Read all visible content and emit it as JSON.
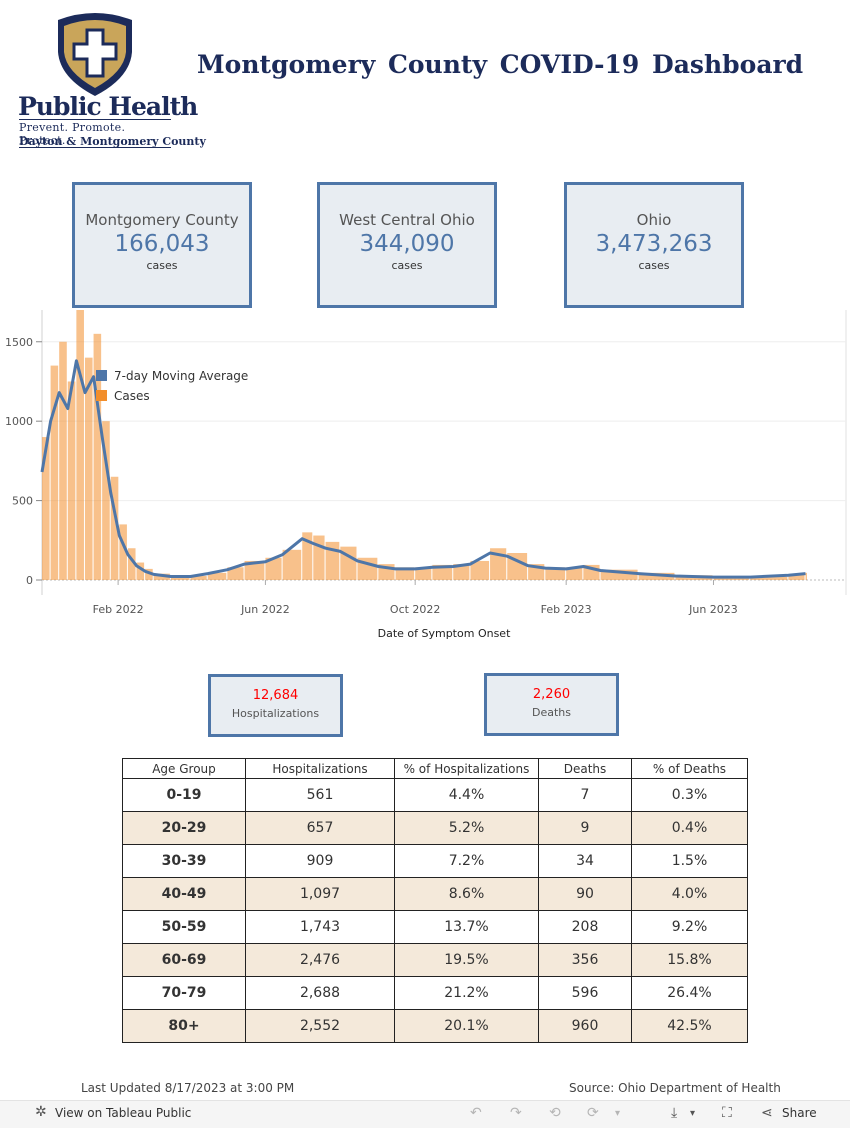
{
  "logo": {
    "name": "Public Health",
    "tagline": "Prevent. Promote. Protect.",
    "subtitle": "Dayton & Montgomery County"
  },
  "title": "Montgomery County COVID-19 Dashboard",
  "kpis": [
    {
      "region": "Montgomery County",
      "value": "166,043",
      "unit": "cases"
    },
    {
      "region": "West Central Ohio",
      "value": "344,090",
      "unit": "cases"
    },
    {
      "region": "Ohio",
      "value": "3,473,263",
      "unit": "cases"
    }
  ],
  "totals": {
    "hospitalizations": {
      "value": "12,684",
      "label": "Hospitalizations"
    },
    "deaths": {
      "value": "2,260",
      "label": "Deaths"
    }
  },
  "colors": {
    "accent": "#4e76a8",
    "cases": "#f28e2b",
    "alert": "#ff0000",
    "band": "#f4e9da"
  },
  "chart_data": {
    "type": "bar",
    "xlabel": "Date of Symptom Onset",
    "ylabel": "",
    "ylim": [
      0,
      1700
    ],
    "y_ticks": [
      0,
      500,
      1000,
      1500
    ],
    "x_range": [
      "2021-12-01",
      "2023-08-17"
    ],
    "x_ticks": [
      {
        "date": "2022-02-01",
        "label": "Feb 2022"
      },
      {
        "date": "2022-06-01",
        "label": "Jun 2022"
      },
      {
        "date": "2022-10-01",
        "label": "Oct 2022"
      },
      {
        "date": "2023-02-01",
        "label": "Feb 2023"
      },
      {
        "date": "2023-06-01",
        "label": "Jun 2023"
      }
    ],
    "legend": {
      "position": "top-left",
      "entries": [
        "7-day Moving Average",
        "Cases"
      ]
    },
    "grid": true,
    "series": [
      {
        "name": "7-day Moving Average",
        "type": "line",
        "color": "#4e76a8",
        "x": [
          "2021-12-01",
          "2021-12-08",
          "2021-12-15",
          "2021-12-22",
          "2021-12-29",
          "2022-01-05",
          "2022-01-12",
          "2022-01-19",
          "2022-01-26",
          "2022-02-02",
          "2022-02-09",
          "2022-02-16",
          "2022-02-23",
          "2022-03-02",
          "2022-03-16",
          "2022-04-01",
          "2022-04-15",
          "2022-05-01",
          "2022-05-15",
          "2022-06-01",
          "2022-06-15",
          "2022-07-01",
          "2022-07-10",
          "2022-07-20",
          "2022-08-01",
          "2022-08-15",
          "2022-09-01",
          "2022-09-15",
          "2022-10-01",
          "2022-10-15",
          "2022-11-01",
          "2022-11-15",
          "2022-12-01",
          "2022-12-15",
          "2023-01-01",
          "2023-01-15",
          "2023-02-01",
          "2023-02-15",
          "2023-03-01",
          "2023-04-01",
          "2023-05-01",
          "2023-06-01",
          "2023-07-01",
          "2023-08-01",
          "2023-08-15"
        ],
        "values": [
          680,
          1000,
          1180,
          1080,
          1380,
          1180,
          1280,
          900,
          550,
          280,
          160,
          90,
          55,
          35,
          22,
          22,
          40,
          65,
          100,
          115,
          160,
          260,
          230,
          200,
          180,
          120,
          85,
          70,
          70,
          80,
          85,
          100,
          170,
          150,
          90,
          75,
          70,
          85,
          60,
          40,
          25,
          18,
          18,
          30,
          40
        ]
      },
      {
        "name": "Cases",
        "type": "bar",
        "color": "#f28e2b",
        "x": [
          "2021-12-01",
          "2021-12-08",
          "2021-12-15",
          "2021-12-22",
          "2021-12-29",
          "2022-01-05",
          "2022-01-12",
          "2022-01-19",
          "2022-01-26",
          "2022-02-02",
          "2022-02-09",
          "2022-02-16",
          "2022-02-23",
          "2022-03-02",
          "2022-03-16",
          "2022-04-01",
          "2022-04-15",
          "2022-05-01",
          "2022-05-15",
          "2022-06-01",
          "2022-06-15",
          "2022-07-01",
          "2022-07-10",
          "2022-07-20",
          "2022-08-01",
          "2022-08-15",
          "2022-09-01",
          "2022-09-15",
          "2022-10-01",
          "2022-10-15",
          "2022-11-01",
          "2022-11-15",
          "2022-12-01",
          "2022-12-15",
          "2023-01-01",
          "2023-01-15",
          "2023-02-01",
          "2023-02-15",
          "2023-03-01",
          "2023-04-01",
          "2023-05-01",
          "2023-06-01",
          "2023-07-01",
          "2023-08-01",
          "2023-08-15"
        ],
        "values": [
          900,
          1350,
          1500,
          1250,
          1750,
          1400,
          1550,
          1000,
          650,
          350,
          200,
          110,
          70,
          40,
          25,
          25,
          45,
          80,
          120,
          140,
          190,
          300,
          280,
          240,
          210,
          140,
          100,
          80,
          80,
          95,
          100,
          120,
          200,
          170,
          100,
          80,
          80,
          95,
          65,
          45,
          30,
          20,
          20,
          35,
          45
        ]
      }
    ]
  },
  "table": {
    "headers": [
      "Age Group",
      "Hospitalizations",
      "% of Hospitalizations",
      "Deaths",
      "% of Deaths"
    ],
    "rows": [
      [
        "0-19",
        "561",
        "4.4%",
        "7",
        "0.3%"
      ],
      [
        "20-29",
        "657",
        "5.2%",
        "9",
        "0.4%"
      ],
      [
        "30-39",
        "909",
        "7.2%",
        "34",
        "1.5%"
      ],
      [
        "40-49",
        "1,097",
        "8.6%",
        "90",
        "4.0%"
      ],
      [
        "50-59",
        "1,743",
        "13.7%",
        "208",
        "9.2%"
      ],
      [
        "60-69",
        "2,476",
        "19.5%",
        "356",
        "15.8%"
      ],
      [
        "70-79",
        "2,688",
        "21.2%",
        "596",
        "26.4%"
      ],
      [
        "80+",
        "2,552",
        "20.1%",
        "960",
        "42.5%"
      ]
    ]
  },
  "footer": {
    "updated": "Last Updated 8/17/2023 at 3:00 PM",
    "source": "Source: Ohio Department of Health"
  },
  "toolbar": {
    "view_link": "View on Tableau Public",
    "share_label": "Share"
  }
}
